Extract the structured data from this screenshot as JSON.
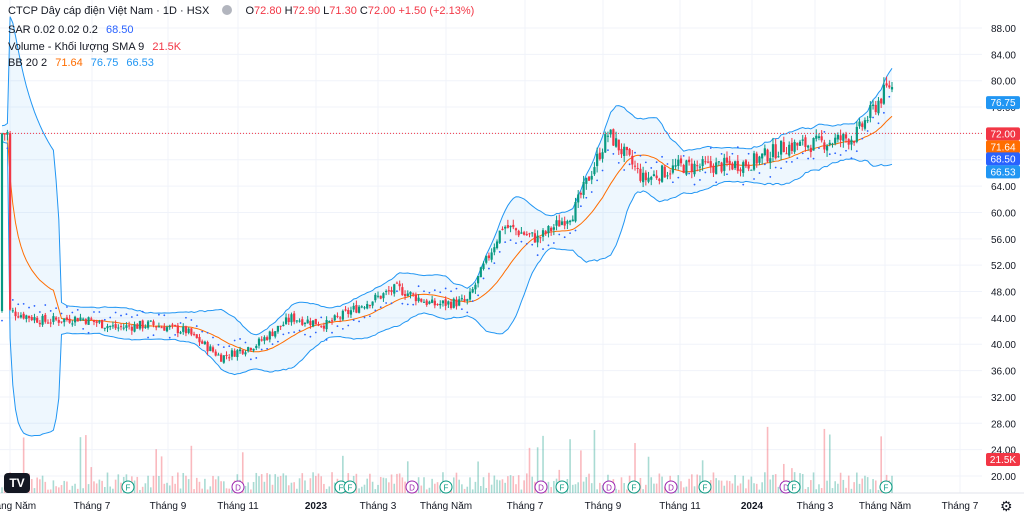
{
  "header": {
    "title": "CTCP Dây cáp điện Việt Nam · 1D · HSX",
    "ohlc": {
      "o": "72.80",
      "h": "72.90",
      "l": "71.30",
      "c": "72.00",
      "chg": "+1.50 (+2.13%)"
    }
  },
  "indicators": [
    {
      "name": "SAR 0.02 0.02 0.2",
      "values": [
        "68.50"
      ],
      "colors": [
        "#2962ff"
      ]
    },
    {
      "name": "Volume - Khối lượng SMA 9",
      "values": [
        "21.5K"
      ],
      "colors": [
        "#f23645"
      ]
    },
    {
      "name": "BB 20 2",
      "values": [
        "71.64",
        "76.75",
        "66.53"
      ],
      "colors": [
        "#ff6d00",
        "#2196f3",
        "#2196f3"
      ]
    }
  ],
  "colors": {
    "up": "#089981",
    "down": "#f23645",
    "bb_band": "#2196f3",
    "bb_basis": "#ff6d00",
    "sar": "#2962ff",
    "price_line": "#f23645"
  },
  "chart_data": {
    "type": "candlestick",
    "price_axis": {
      "ticks": [
        "88.00",
        "84.00",
        "80.00",
        "76.00",
        "72.00",
        "68.00",
        "64.00",
        "60.00",
        "56.00",
        "52.00",
        "48.00",
        "44.00",
        "40.00",
        "36.00",
        "32.00",
        "28.00",
        "24.00",
        "20.00"
      ],
      "range": [
        18,
        90
      ]
    },
    "time_axis": [
      "Tháng Năm",
      "Tháng 7",
      "Tháng 9",
      "Tháng 11",
      "2023",
      "Tháng 3",
      "Tháng Năm",
      "Tháng 7",
      "Tháng 9",
      "Tháng 11",
      "2024",
      "Tháng 3",
      "Tháng Năm",
      "Tháng 7"
    ],
    "price_labels": [
      {
        "text": "76.75",
        "value": 76.75,
        "color": "#2196f3"
      },
      {
        "text": "72.00",
        "value": 72.0,
        "color": "#f23645"
      },
      {
        "text": "71.64",
        "value": 71.64,
        "color": "#ff6d00"
      },
      {
        "text": "68.50",
        "value": 68.5,
        "color": "#2962ff"
      },
      {
        "text": "66.53",
        "value": 66.53,
        "color": "#2196f3"
      },
      {
        "text": "21.5K",
        "value": 21.5,
        "color": "#f23645"
      }
    ],
    "key_closes": [
      {
        "m": 0,
        "v": 45
      },
      {
        "m": 1,
        "v": 43.5
      },
      {
        "m": 2,
        "v": 44
      },
      {
        "m": 3,
        "v": 42.5
      },
      {
        "m": 4,
        "v": 43
      },
      {
        "m": 5,
        "v": 42
      },
      {
        "m": 6,
        "v": 38
      },
      {
        "m": 7,
        "v": 40
      },
      {
        "m": 8,
        "v": 44
      },
      {
        "m": 9,
        "v": 43
      },
      {
        "m": 10,
        "v": 46
      },
      {
        "m": 11,
        "v": 48.5
      },
      {
        "m": 12,
        "v": 46
      },
      {
        "m": 13,
        "v": 46.5
      },
      {
        "m": 14,
        "v": 58
      },
      {
        "m": 15,
        "v": 56
      },
      {
        "m": 16,
        "v": 60
      },
      {
        "m": 17,
        "v": 72
      },
      {
        "m": 18,
        "v": 65
      },
      {
        "m": 19,
        "v": 67
      },
      {
        "m": 20,
        "v": 67
      },
      {
        "m": 21,
        "v": 67.5
      },
      {
        "m": 22,
        "v": 70
      },
      {
        "m": 23,
        "v": 70.5
      },
      {
        "m": 24,
        "v": 71.5
      },
      {
        "m": 25,
        "v": 79.5
      },
      {
        "m": 26,
        "v": 69
      },
      {
        "m": 26.3,
        "v": 72
      }
    ],
    "events": [
      "F",
      "D",
      "F",
      "F",
      "D",
      "F",
      "D",
      "F",
      "D",
      "F",
      "D",
      "F",
      "D",
      "F",
      "F"
    ]
  },
  "controls": {
    "logo": "TV",
    "settings": "⚙"
  }
}
